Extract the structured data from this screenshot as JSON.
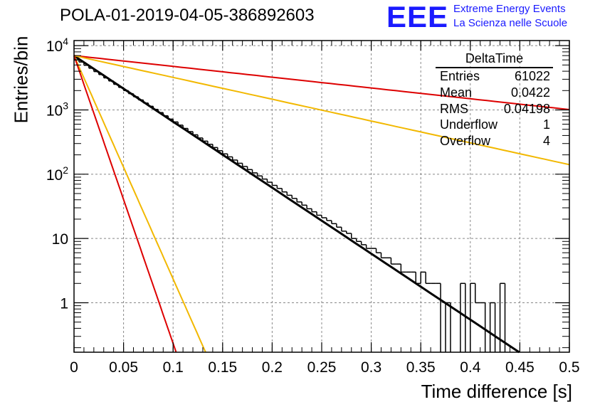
{
  "title": "POLA-01-2019-04-05-386892603",
  "logo": {
    "mark": "EEE",
    "line1": "Extreme Energy Events",
    "line2": "La Scienza nelle Scuole",
    "color": "#1a1aff"
  },
  "stats_box": {
    "name": "DeltaTime",
    "rows": [
      {
        "label": "Entries",
        "value": "61022"
      },
      {
        "label": "Mean",
        "value": "0.0422"
      },
      {
        "label": "RMS",
        "value": "0.04198"
      },
      {
        "label": "Underflow",
        "value": "1"
      },
      {
        "label": "Overflow",
        "value": "4"
      }
    ]
  },
  "chart_data": {
    "type": "line",
    "title": "POLA-01-2019-04-05-386892603",
    "xlabel": "Time difference [s]",
    "ylabel": "Entries/bin",
    "xlim": [
      0,
      0.5
    ],
    "ylim": [
      0.17,
      12000
    ],
    "yscale": "log",
    "grid": true,
    "x_ticks": [
      "0",
      "0.05",
      "0.1",
      "0.15",
      "0.2",
      "0.25",
      "0.3",
      "0.35",
      "0.4",
      "0.45",
      "0.5"
    ],
    "y_ticks": [
      {
        "value": 1,
        "label": "1"
      },
      {
        "value": 10,
        "label": "10"
      },
      {
        "value": 100,
        "label": "10^2"
      },
      {
        "value": 1000,
        "label": "10^3"
      },
      {
        "value": 10000,
        "label": "10^4"
      }
    ],
    "histogram": {
      "bin_width": 0.005,
      "color": "#000000",
      "counts": [
        6000,
        5560,
        4950,
        4450,
        3950,
        3550,
        3150,
        2820,
        2500,
        2240,
        2000,
        1790,
        1600,
        1430,
        1280,
        1140,
        1020,
        910,
        810,
        720,
        650,
        580,
        515,
        460,
        410,
        366,
        327,
        292,
        260,
        232,
        207,
        186,
        166,
        148,
        132,
        118,
        105,
        94,
        84,
        75,
        67,
        60,
        53,
        47,
        42,
        37,
        33,
        29,
        26,
        23,
        21,
        19,
        17,
        15,
        13,
        12,
        10,
        9,
        8,
        7,
        7,
        6,
        5,
        5,
        4,
        4,
        3,
        3,
        3,
        2,
        3,
        2,
        2,
        2,
        0,
        1,
        0,
        0,
        2,
        0,
        2,
        1,
        1,
        0,
        1,
        0,
        2,
        0,
        0,
        0,
        0,
        0,
        0,
        0,
        0,
        0,
        0,
        0,
        0,
        0
      ]
    },
    "series": [
      {
        "color": "#000000",
        "A": 6980,
        "tau": 0.0423
      },
      {
        "color": "#dd0000",
        "A": 7000,
        "tau": 0.2587
      },
      {
        "color": "#f2b800",
        "A": 7000,
        "tau": 0.128
      },
      {
        "color": "#f2b800",
        "A": 7000,
        "tau": 0.0125
      },
      {
        "color": "#dd0000",
        "A": 7000,
        "tau": 0.0097
      }
    ]
  }
}
